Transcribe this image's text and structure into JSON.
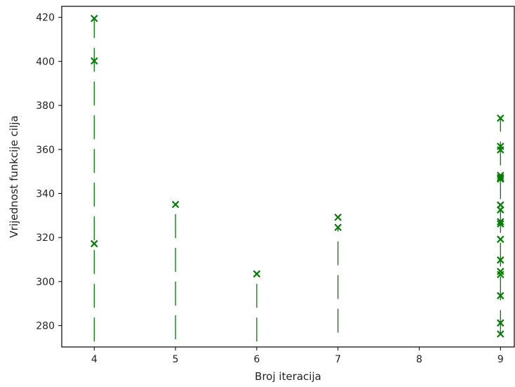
{
  "chart_data": {
    "type": "scatter",
    "title": "",
    "xlabel": "Broj iteracija",
    "ylabel": "Vrijednost funkcije cilja",
    "xlim": [
      3.6,
      9.17
    ],
    "ylim": [
      270.3,
      425
    ],
    "xticks": [
      4,
      5,
      6,
      7,
      8,
      9
    ],
    "yticks": [
      280,
      300,
      320,
      340,
      360,
      380,
      400,
      420
    ],
    "grid": false,
    "legend": "none",
    "marker": "x",
    "color": "#008000",
    "series": [
      {
        "points": [
          {
            "x": 4,
            "y": 419.5
          },
          {
            "x": 4,
            "y": 400.2
          },
          {
            "x": 4,
            "y": 317.2
          },
          {
            "x": 5,
            "y": 335.0
          },
          {
            "x": 6,
            "y": 303.5
          },
          {
            "x": 7,
            "y": 329.2
          },
          {
            "x": 7,
            "y": 324.6
          },
          {
            "x": 9,
            "y": 374.2
          },
          {
            "x": 9,
            "y": 361.4
          },
          {
            "x": 9,
            "y": 359.8
          },
          {
            "x": 9,
            "y": 348.2
          },
          {
            "x": 9,
            "y": 347.2
          },
          {
            "x": 9,
            "y": 346.6
          },
          {
            "x": 9,
            "y": 334.8
          },
          {
            "x": 9,
            "y": 332.6
          },
          {
            "x": 9,
            "y": 327.2
          },
          {
            "x": 9,
            "y": 326.2
          },
          {
            "x": 9,
            "y": 319.2
          },
          {
            "x": 9,
            "y": 309.8
          },
          {
            "x": 9,
            "y": 304.6
          },
          {
            "x": 9,
            "y": 303.2
          },
          {
            "x": 9,
            "y": 293.6
          },
          {
            "x": 9,
            "y": 281.2
          },
          {
            "x": 9,
            "y": 276.2
          }
        ]
      }
    ],
    "dashed_lines": [
      {
        "x": 4,
        "y_from": 272.8,
        "y_to": 419.5
      },
      {
        "x": 5,
        "y_from": 273.8,
        "y_to": 335.0
      },
      {
        "x": 6,
        "y_from": 272.8,
        "y_to": 303.5
      },
      {
        "x": 7,
        "y_from": 276.8,
        "y_to": 324.6
      },
      {
        "x": 9,
        "y_from": 276.2,
        "y_to": 374.2
      }
    ]
  }
}
